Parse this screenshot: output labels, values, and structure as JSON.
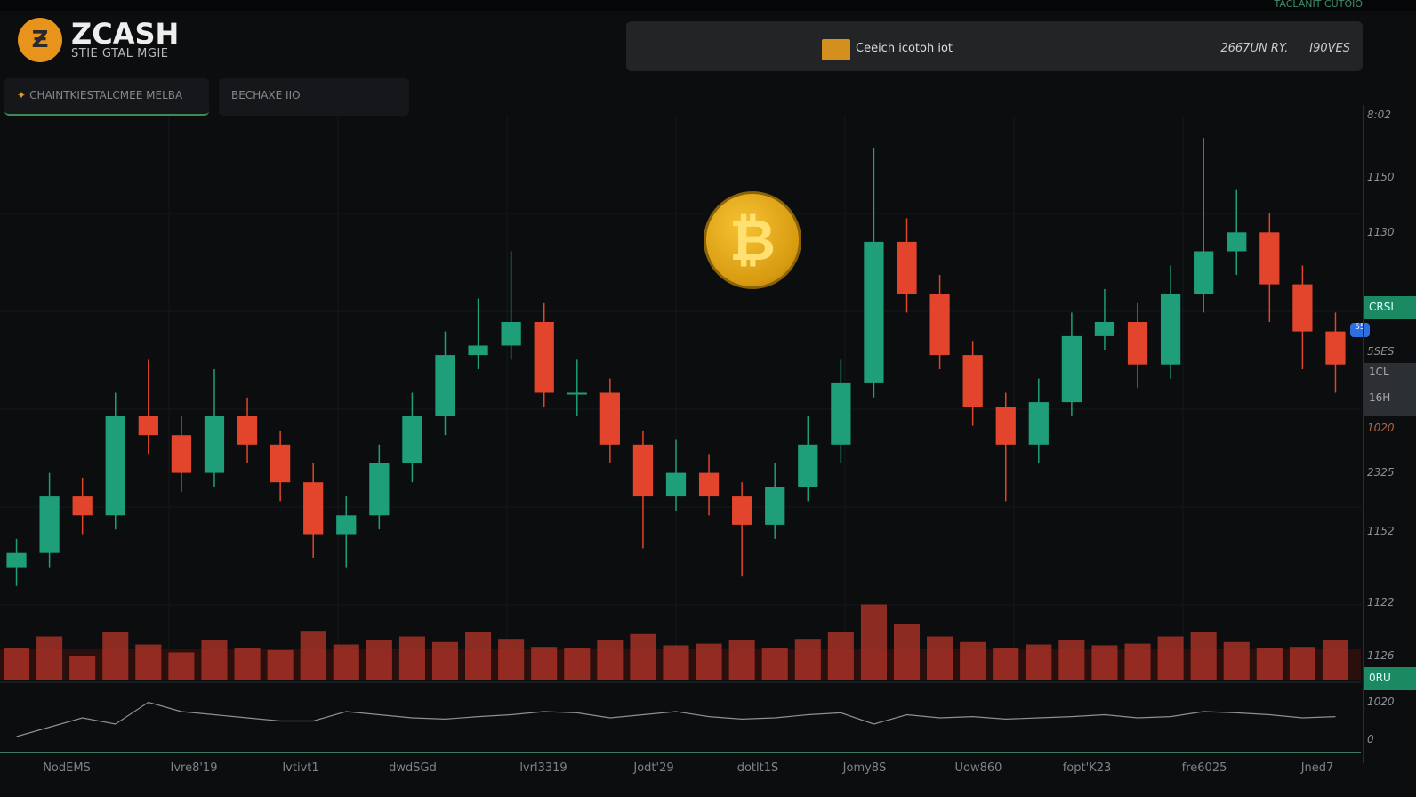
{
  "app": {
    "brand": "ZCASH",
    "brand_sub": "STIE GTAL MGIE",
    "top_status": "TACLANIT CUTOIO"
  },
  "topbar": {
    "title": "Ceeich icotoh iot",
    "right_a": "2667UN RY.",
    "right_b": "I90VES"
  },
  "tabs": [
    {
      "label": "CHAINTKIESTALCMEE MELBA",
      "active": true
    },
    {
      "label": "BECHAXE IIO",
      "active": false
    }
  ],
  "right_axis": {
    "labels": [
      "8:02",
      "1150",
      "1130",
      "5SES",
      "1020",
      "2325",
      "1152",
      "1122",
      "1126",
      "1020",
      "0"
    ],
    "badges": [
      "CRSI",
      "0RU"
    ],
    "gray": [
      "1CL",
      "16H"
    ],
    "marker": "55"
  },
  "x_labels": [
    "NodEMS",
    "Ivre8'19",
    "Ivtivt1",
    "dwdSGd",
    "lvrl3319",
    "Jodt'29",
    "dotlt1S",
    "Jomy8S",
    "Uow860",
    "fopt'K23",
    "fre6025",
    "Jned7"
  ],
  "colors": {
    "up": "#1f9e7a",
    "down": "#e2452b",
    "volume": "#b8352a",
    "osc": "#8a9095",
    "bg": "#0b0d0f",
    "coin": "#e8931c"
  },
  "icons": {
    "logo": "zcash-coin",
    "center": "bitcoin-coin"
  },
  "chart_data": {
    "type": "candlestick",
    "ylim": [
      0,
      100
    ],
    "grid": true,
    "candles": [
      [
        8,
        14,
        4,
        11
      ],
      [
        11,
        28,
        8,
        23
      ],
      [
        23,
        27,
        15,
        19
      ],
      [
        19,
        45,
        16,
        40
      ],
      [
        40,
        52,
        32,
        36
      ],
      [
        36,
        40,
        24,
        28
      ],
      [
        28,
        50,
        25,
        40
      ],
      [
        40,
        44,
        30,
        34
      ],
      [
        34,
        37,
        22,
        26
      ],
      [
        26,
        30,
        10,
        15
      ],
      [
        15,
        23,
        8,
        19
      ],
      [
        19,
        34,
        16,
        30
      ],
      [
        30,
        45,
        26,
        40
      ],
      [
        40,
        58,
        36,
        53
      ],
      [
        53,
        65,
        50,
        55
      ],
      [
        55,
        75,
        52,
        60
      ],
      [
        60,
        64,
        42,
        45
      ],
      [
        45,
        52,
        40,
        45
      ],
      [
        45,
        48,
        30,
        34
      ],
      [
        34,
        37,
        12,
        23
      ],
      [
        23,
        35,
        20,
        28
      ],
      [
        28,
        32,
        19,
        23
      ],
      [
        23,
        26,
        6,
        17
      ],
      [
        17,
        30,
        14,
        25
      ],
      [
        25,
        40,
        22,
        34
      ],
      [
        34,
        52,
        30,
        47
      ],
      [
        47,
        97,
        44,
        77
      ],
      [
        77,
        82,
        62,
        66
      ],
      [
        66,
        70,
        50,
        53
      ],
      [
        53,
        56,
        38,
        42
      ],
      [
        42,
        45,
        22,
        34
      ],
      [
        34,
        48,
        30,
        43
      ],
      [
        43,
        62,
        40,
        57
      ],
      [
        57,
        67,
        54,
        60
      ],
      [
        60,
        64,
        46,
        51
      ],
      [
        51,
        72,
        48,
        66
      ],
      [
        66,
        99,
        62,
        75
      ],
      [
        75,
        88,
        70,
        79
      ],
      [
        79,
        83,
        60,
        68
      ],
      [
        68,
        72,
        50,
        58
      ],
      [
        58,
        62,
        45,
        51
      ]
    ],
    "volume": [
      40,
      55,
      30,
      60,
      45,
      35,
      50,
      40,
      38,
      62,
      45,
      50,
      55,
      48,
      60,
      52,
      42,
      40,
      50,
      58,
      44,
      46,
      50,
      40,
      52,
      60,
      95,
      70,
      55,
      48,
      40,
      45,
      50,
      44,
      46,
      55,
      60,
      48,
      40,
      42,
      50
    ],
    "oscillator": [
      20,
      35,
      50,
      40,
      75,
      60,
      55,
      50,
      45,
      45,
      60,
      55,
      50,
      48,
      52,
      55,
      60,
      58,
      50,
      55,
      60,
      52,
      48,
      50,
      55,
      58,
      40,
      55,
      50,
      52,
      48,
      50,
      52,
      55,
      50,
      52,
      60,
      58,
      55,
      50,
      52
    ]
  }
}
